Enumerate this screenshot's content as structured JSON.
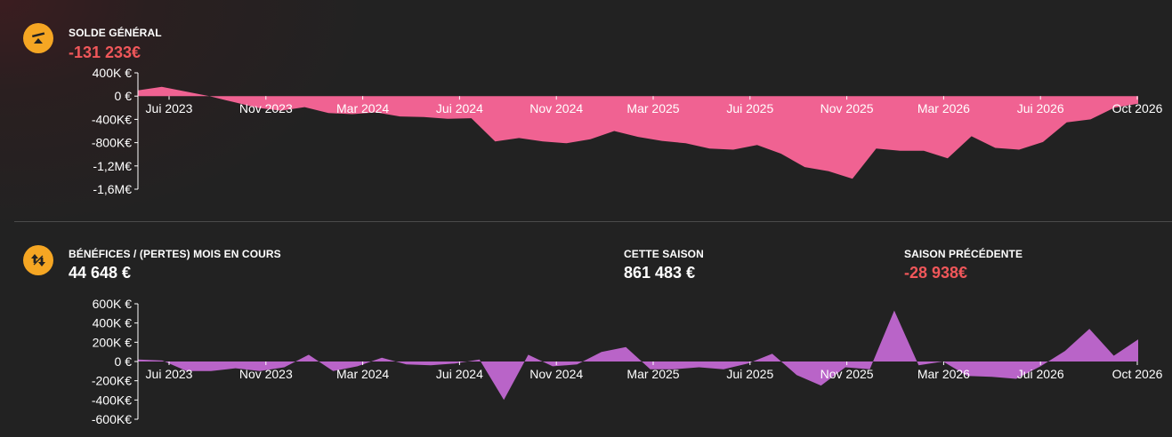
{
  "sections": {
    "balance": {
      "label": "SOLDE GÉNÉRAL",
      "value": "-131 233€"
    },
    "profit": {
      "label": "BÉNÉFICES / (PERTES) MOIS EN COURS",
      "value": "44 648 €",
      "season_label": "CETTE SAISON",
      "season_value": "861 483 €",
      "prev_label": "SAISON PRÉCÉDENTE",
      "prev_value": "-28 938€"
    }
  },
  "icons": {
    "balance": "balance-scale-icon",
    "profit": "up-down-arrows-icon"
  },
  "colors": {
    "accent": "#f5a623",
    "negative": "#f0575a",
    "balance_fill": "#f06292",
    "profit_fill": "#b964c8"
  },
  "chart_data": [
    {
      "type": "area",
      "title": "SOLDE GÉNÉRAL",
      "x_ticks": [
        "Jui 2023",
        "Nov 2023",
        "Mar 2024",
        "Jui 2024",
        "Nov 2024",
        "Mar 2025",
        "Jui 2025",
        "Nov 2025",
        "Mar 2026",
        "Jui 2026",
        "Oct 2026"
      ],
      "y_ticks": [
        "400K €",
        "0 €",
        "-400K€",
        "-800K€",
        "-1,2M€",
        "-1,6M€"
      ],
      "ylim": [
        -1600000,
        400000
      ],
      "series": [
        {
          "values": [
            100000,
            160000,
            80000,
            0,
            -100000,
            -200000,
            -250000,
            -190000,
            -290000,
            -310000,
            -280000,
            -350000,
            -360000,
            -390000,
            -380000,
            -780000,
            -720000,
            -780000,
            -810000,
            -740000,
            -600000,
            -700000,
            -770000,
            -810000,
            -900000,
            -920000,
            -840000,
            -990000,
            -1220000,
            -1290000,
            -1420000,
            -900000,
            -940000,
            -940000,
            -1070000,
            -690000,
            -890000,
            -920000,
            -790000,
            -450000,
            -400000,
            -200000,
            -131233
          ]
        }
      ]
    },
    {
      "type": "area",
      "title": "BÉNÉFICES / (PERTES) MOIS EN COURS",
      "x_ticks": [
        "Jui 2023",
        "Nov 2023",
        "Mar 2024",
        "Jui 2024",
        "Nov 2024",
        "Mar 2025",
        "Jui 2025",
        "Nov 2025",
        "Mar 2026",
        "Jui 2026",
        "Oct 2026"
      ],
      "y_ticks": [
        "600K €",
        "400K €",
        "200K €",
        "0 €",
        "-200K€",
        "-400K€",
        "-600K€"
      ],
      "ylim": [
        -600000,
        600000
      ],
      "series": [
        {
          "values": [
            20000,
            10000,
            -100000,
            -100000,
            -70000,
            -100000,
            -60000,
            70000,
            -100000,
            -50000,
            40000,
            -30000,
            -40000,
            -20000,
            20000,
            -400000,
            70000,
            -50000,
            -30000,
            100000,
            150000,
            -80000,
            -80000,
            -60000,
            -80000,
            -20000,
            80000,
            -140000,
            -250000,
            -60000,
            -80000,
            530000,
            -40000,
            0,
            -150000,
            -160000,
            -180000,
            -50000,
            110000,
            340000,
            60000,
            230000
          ]
        }
      ]
    }
  ]
}
